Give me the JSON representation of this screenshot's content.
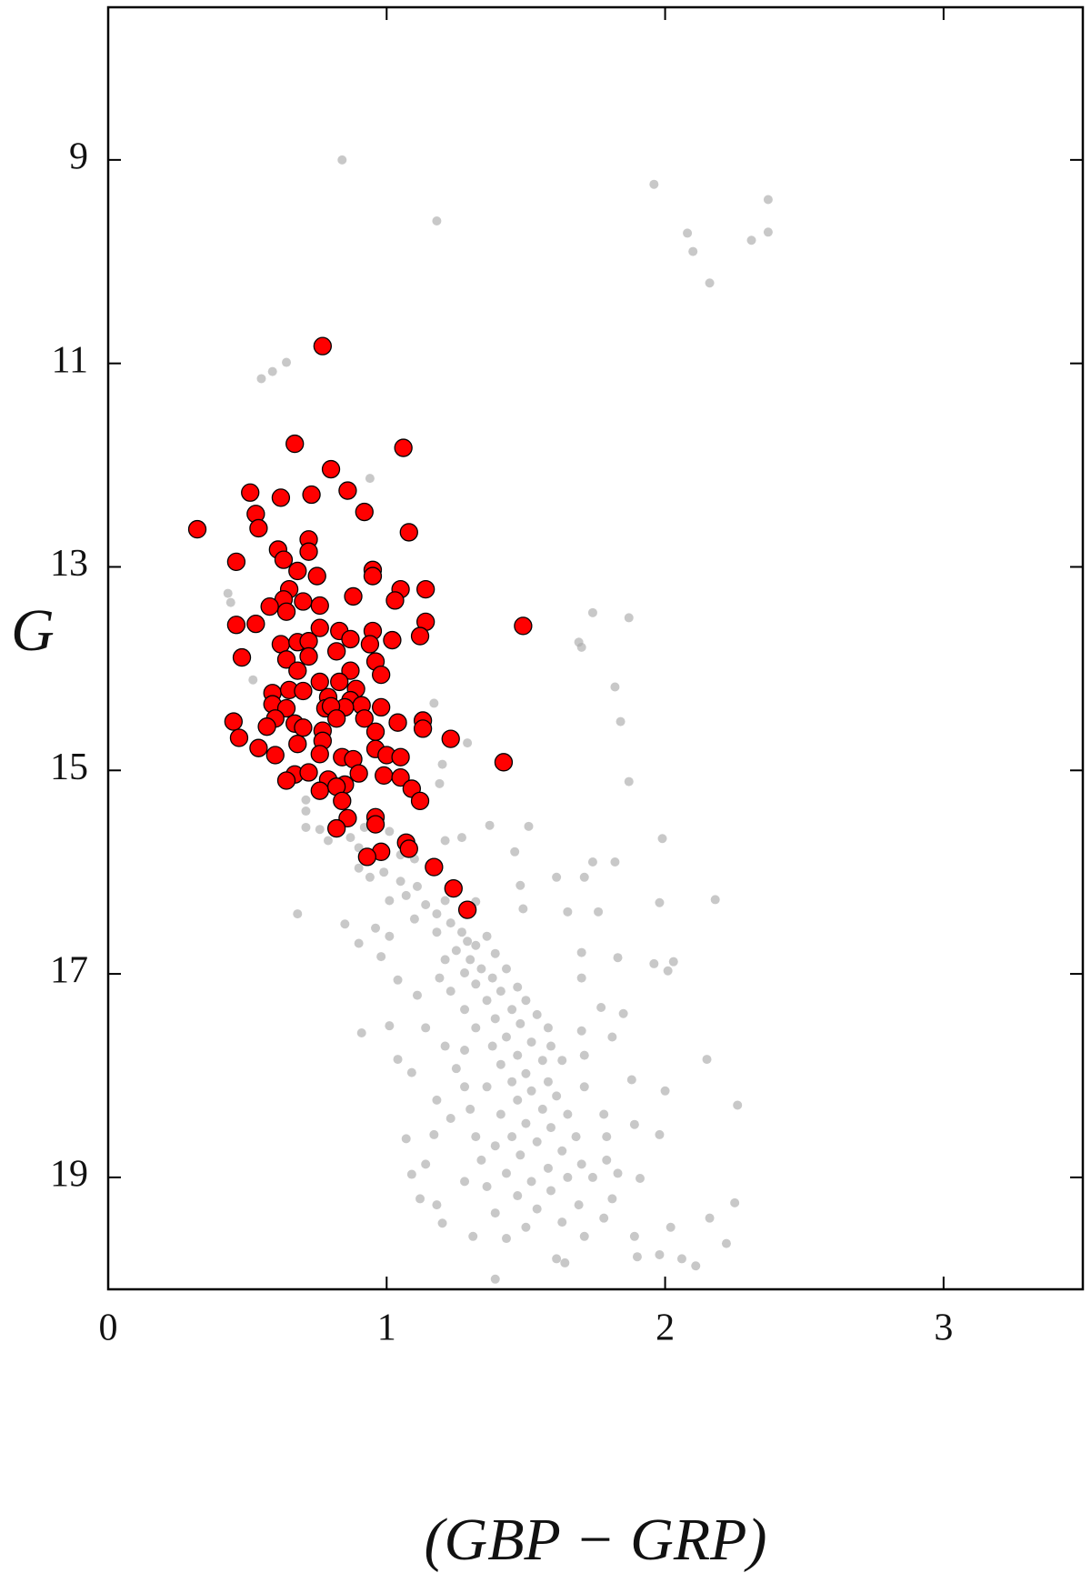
{
  "chart_data": {
    "type": "scatter",
    "xlabel": "(GBP − GRP)",
    "ylabel": "G",
    "xlim": [
      0,
      3.5
    ],
    "xticks": [
      0,
      1,
      2,
      3
    ],
    "ylim": [
      20.1,
      7.5
    ],
    "yticks": [
      9,
      11,
      13,
      15,
      17,
      19
    ],
    "series": [
      {
        "color": "#aaaaaa",
        "x": [
          0.84,
          1.18,
          1.96,
          2.37,
          2.37,
          2.08,
          2.1,
          2.31,
          2.16,
          0.64,
          0.59,
          0.55,
          0.94,
          0.43,
          0.44,
          1.74,
          1.87,
          1.69,
          1.7,
          1.82,
          0.52,
          1.17,
          1.84,
          1.29,
          1.87,
          1.2,
          1.19,
          0.71,
          0.71,
          0.76,
          0.79,
          0.9,
          0.87,
          1.21,
          1.27,
          1.37,
          1.46,
          1.51,
          1.99,
          1.74,
          1.82,
          1.61,
          1.71,
          1.48,
          1.76,
          1.98,
          2.18,
          1.32,
          1.49,
          1.65,
          0.68,
          0.9,
          0.94,
          0.99,
          1.05,
          1.07,
          1.11,
          1.01,
          1.14,
          1.18,
          1.21,
          1.1,
          1.23,
          1.27,
          1.18,
          1.29,
          1.32,
          1.36,
          1.25,
          1.21,
          1.3,
          1.39,
          1.34,
          1.28,
          1.38,
          1.43,
          1.32,
          1.41,
          1.47,
          1.23,
          1.19,
          1.5,
          1.36,
          1.28,
          1.45,
          1.54,
          1.39,
          1.48,
          1.32,
          1.58,
          1.43,
          1.52,
          1.38,
          1.59,
          1.47,
          1.28,
          1.56,
          1.41,
          1.63,
          1.5,
          1.45,
          1.58,
          1.36,
          1.52,
          1.61,
          1.47,
          1.56,
          1.41,
          1.65,
          1.5,
          1.59,
          1.45,
          1.68,
          1.54,
          1.39,
          1.63,
          1.48,
          1.7,
          1.58,
          1.43,
          1.65,
          1.52,
          1.74,
          1.36,
          1.59,
          1.47,
          1.69,
          1.54,
          1.39,
          1.78,
          1.63,
          1.5,
          0.9,
          0.96,
          1.01,
          0.85,
          0.91,
          1.01,
          1.04,
          1.09,
          1.18,
          1.23,
          1.17,
          1.07,
          1.14,
          1.09,
          1.12,
          1.18,
          1.2,
          1.31,
          1.43,
          1.61,
          1.64,
          1.39,
          1.71,
          1.9,
          1.98,
          2.06,
          2.11,
          2.22,
          2.16,
          2.25,
          2.02,
          1.89,
          1.81,
          1.91,
          1.98,
          1.89,
          2.0,
          1.88,
          2.15,
          2.26,
          1.81,
          1.7,
          1.77,
          1.7,
          1.83,
          1.7,
          1.96,
          2.01,
          2.03,
          1.85,
          1.71,
          1.71,
          1.78,
          1.79,
          1.79,
          1.83,
          0.98,
          1.04,
          1.11,
          1.14,
          1.21,
          1.25,
          1.28,
          1.3,
          1.32,
          1.34,
          1.28,
          0.67,
          0.71,
          0.85,
          0.92,
          1.01,
          1.05,
          1.1
        ],
        "y": [
          9.0,
          9.6,
          9.24,
          9.39,
          9.71,
          9.72,
          9.9,
          9.79,
          10.21,
          10.99,
          11.08,
          11.15,
          12.13,
          13.26,
          13.35,
          13.45,
          13.5,
          13.74,
          13.79,
          14.18,
          14.11,
          14.34,
          14.52,
          14.73,
          15.11,
          14.94,
          15.13,
          15.4,
          15.56,
          15.58,
          15.69,
          15.76,
          15.66,
          15.69,
          15.66,
          15.54,
          15.8,
          15.55,
          15.67,
          15.9,
          15.9,
          16.05,
          16.05,
          16.13,
          16.39,
          16.3,
          16.27,
          16.29,
          16.36,
          16.39,
          16.41,
          15.96,
          16.05,
          16.0,
          16.09,
          16.23,
          16.14,
          16.28,
          16.32,
          16.41,
          16.28,
          16.46,
          16.5,
          16.59,
          16.59,
          16.68,
          16.72,
          16.63,
          16.77,
          16.86,
          16.86,
          16.8,
          16.95,
          16.99,
          17.04,
          16.95,
          17.1,
          17.17,
          17.13,
          17.17,
          17.04,
          17.26,
          17.26,
          17.35,
          17.35,
          17.4,
          17.44,
          17.49,
          17.53,
          17.53,
          17.62,
          17.67,
          17.71,
          17.71,
          17.8,
          17.75,
          17.85,
          17.89,
          17.85,
          17.98,
          18.06,
          18.06,
          18.11,
          18.15,
          18.2,
          18.24,
          18.33,
          18.38,
          18.38,
          18.47,
          18.51,
          18.6,
          18.6,
          18.65,
          18.69,
          18.74,
          18.78,
          18.87,
          18.91,
          18.96,
          19.0,
          19.04,
          19.0,
          19.09,
          19.13,
          19.18,
          19.27,
          19.31,
          19.35,
          19.4,
          19.44,
          19.49,
          16.7,
          16.55,
          16.63,
          16.51,
          17.58,
          17.51,
          17.84,
          17.97,
          18.24,
          18.42,
          18.58,
          18.62,
          18.87,
          18.97,
          19.21,
          19.27,
          19.45,
          19.58,
          19.6,
          19.8,
          19.84,
          20.0,
          19.58,
          19.78,
          19.76,
          19.8,
          19.87,
          19.65,
          19.4,
          19.25,
          19.49,
          19.58,
          19.21,
          19.01,
          18.58,
          18.48,
          18.15,
          18.04,
          17.84,
          18.29,
          17.62,
          17.56,
          17.33,
          17.04,
          16.84,
          16.79,
          16.9,
          16.97,
          16.88,
          17.39,
          17.8,
          18.11,
          18.38,
          18.6,
          18.83,
          18.96,
          16.83,
          17.06,
          17.21,
          17.53,
          17.71,
          17.93,
          18.11,
          18.33,
          18.6,
          18.83,
          19.04,
          14.76,
          15.29,
          15.47,
          15.56,
          15.6,
          15.83,
          15.87
        ]
      },
      {
        "color": "#ff0000",
        "x": [
          0.32,
          0.77,
          0.67,
          1.06,
          0.8,
          0.51,
          0.62,
          0.73,
          0.86,
          0.92,
          0.53,
          0.54,
          1.08,
          0.46,
          0.61,
          0.63,
          0.72,
          0.72,
          0.68,
          0.75,
          0.95,
          0.95,
          1.05,
          1.14,
          1.03,
          0.88,
          0.65,
          0.63,
          0.58,
          0.7,
          0.76,
          0.46,
          0.53,
          0.64,
          1.14,
          1.49,
          0.76,
          0.83,
          0.95,
          0.87,
          0.94,
          1.02,
          1.12,
          0.62,
          0.68,
          0.72,
          0.82,
          0.48,
          0.64,
          0.72,
          0.96,
          0.68,
          0.87,
          0.98,
          0.76,
          0.83,
          0.89,
          0.59,
          0.65,
          0.7,
          0.79,
          0.87,
          0.59,
          0.91,
          0.64,
          0.78,
          0.85,
          0.8,
          0.98,
          0.45,
          0.6,
          0.67,
          0.82,
          0.92,
          1.04,
          1.13,
          0.57,
          0.7,
          0.77,
          0.96,
          1.13,
          0.47,
          1.23,
          0.68,
          0.77,
          0.54,
          0.96,
          0.6,
          0.76,
          0.84,
          0.88,
          1.0,
          1.05,
          1.42,
          0.9,
          0.99,
          0.67,
          0.72,
          0.64,
          1.05,
          0.79,
          0.85,
          0.76,
          0.82,
          1.09,
          0.84,
          1.12,
          0.96,
          0.86,
          0.96,
          0.82,
          1.07,
          1.08,
          0.98,
          0.93,
          1.17,
          1.24,
          1.29
        ],
        "y": [
          12.63,
          10.83,
          11.79,
          11.83,
          12.04,
          12.27,
          12.32,
          12.29,
          12.25,
          12.46,
          12.48,
          12.62,
          12.66,
          12.95,
          12.83,
          12.93,
          12.73,
          12.85,
          13.04,
          13.09,
          13.03,
          13.09,
          13.22,
          13.22,
          13.33,
          13.29,
          13.22,
          13.32,
          13.39,
          13.34,
          13.38,
          13.57,
          13.56,
          13.44,
          13.54,
          13.58,
          13.6,
          13.63,
          13.63,
          13.71,
          13.76,
          13.72,
          13.68,
          13.76,
          13.74,
          13.73,
          13.83,
          13.89,
          13.91,
          13.88,
          13.93,
          14.02,
          14.02,
          14.06,
          14.13,
          14.13,
          14.2,
          14.24,
          14.21,
          14.22,
          14.28,
          14.31,
          14.35,
          14.36,
          14.39,
          14.39,
          14.38,
          14.37,
          14.38,
          14.52,
          14.49,
          14.54,
          14.49,
          14.49,
          14.53,
          14.51,
          14.57,
          14.58,
          14.61,
          14.62,
          14.59,
          14.68,
          14.69,
          14.74,
          14.71,
          14.78,
          14.79,
          14.85,
          14.84,
          14.87,
          14.89,
          14.85,
          14.87,
          14.92,
          15.03,
          15.05,
          15.04,
          15.02,
          15.1,
          15.07,
          15.09,
          15.14,
          15.2,
          15.16,
          15.18,
          15.3,
          15.3,
          15.46,
          15.47,
          15.53,
          15.57,
          15.71,
          15.77,
          15.8,
          15.85,
          15.95,
          16.16,
          16.37
        ]
      }
    ]
  }
}
